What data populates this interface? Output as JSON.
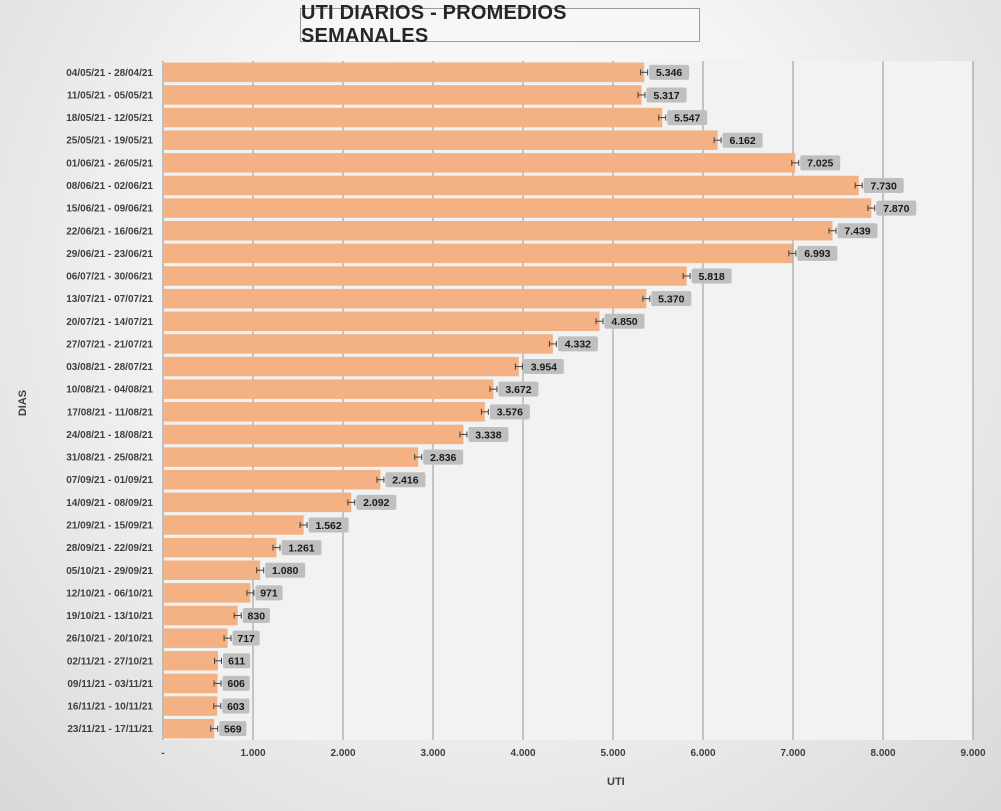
{
  "chart_data": {
    "type": "bar",
    "orientation": "horizontal",
    "title": "UTI DIARIOS - PROMEDIOS SEMANALES",
    "xlabel": "UTI",
    "ylabel": "DIAS",
    "xlim": [
      0,
      9000
    ],
    "x_ticks": [
      "-",
      "1.000",
      "2.000",
      "3.000",
      "4.000",
      "5.000",
      "6.000",
      "7.000",
      "8.000",
      "9.000"
    ],
    "grid": "vertical",
    "error_bars": true,
    "colors": {
      "bar": "#f4b183",
      "label_box": "#bfbfbf",
      "plot_bg": "#f2f2f2",
      "grid": "#7f7f7f"
    },
    "categories": [
      "04/05/21 - 28/04/21",
      "11/05/21 - 05/05/21",
      "18/05/21 - 12/05/21",
      "25/05/21 - 19/05/21",
      "01/06/21 - 26/05/21",
      "08/06/21 - 02/06/21",
      "15/06/21 - 09/06/21",
      "22/06/21 - 16/06/21",
      "29/06/21 - 23/06/21",
      "06/07/21 - 30/06/21",
      "13/07/21 - 07/07/21",
      "20/07/21 - 14/07/21",
      "27/07/21 - 21/07/21",
      "03/08/21 - 28/07/21",
      "10/08/21 - 04/08/21",
      "17/08/21 - 11/08/21",
      "24/08/21 - 18/08/21",
      "31/08/21 - 25/08/21",
      "07/09/21 - 01/09/21",
      "14/09/21 - 08/09/21",
      "21/09/21 - 15/09/21",
      "28/09/21 - 22/09/21",
      "05/10/21 - 29/09/21",
      "12/10/21 - 06/10/21",
      "19/10/21 - 13/10/21",
      "26/10/21 - 20/10/21",
      "02/11/21 - 27/10/21",
      "09/11/21 - 03/11/21",
      "16/11/21 - 10/11/21",
      "23/11/21 - 17/11/21"
    ],
    "values": [
      5346,
      5317,
      5547,
      6162,
      7025,
      7730,
      7870,
      7439,
      6993,
      5818,
      5370,
      4850,
      4332,
      3954,
      3672,
      3576,
      3338,
      2836,
      2416,
      2092,
      1562,
      1261,
      1080,
      971,
      830,
      717,
      611,
      606,
      603,
      569
    ],
    "data_labels": [
      "5.346",
      "5.317",
      "5.547",
      "6.162",
      "7.025",
      "7.730",
      "7.870",
      "7.439",
      "6.993",
      "5.818",
      "5.370",
      "4.850",
      "4.332",
      "3.954",
      "3.672",
      "3.576",
      "3.338",
      "2.836",
      "2.416",
      "2.092",
      "1.562",
      "1.261",
      "1.080",
      "971",
      "830",
      "717",
      "611",
      "606",
      "603",
      "569"
    ]
  }
}
